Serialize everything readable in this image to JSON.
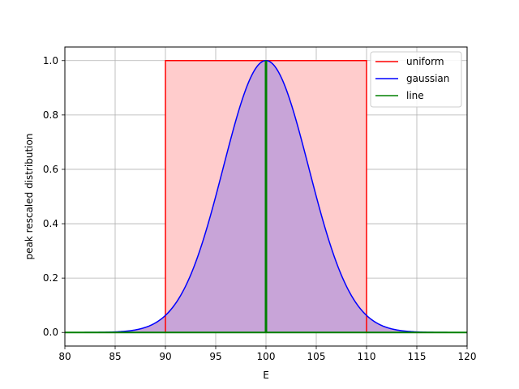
{
  "chart_data": {
    "type": "area",
    "title": "",
    "xlabel": "E",
    "ylabel": "peak rescaled distribution",
    "xlim": [
      80,
      120
    ],
    "ylim": [
      -0.05,
      1.05
    ],
    "xticks": [
      80,
      85,
      90,
      95,
      100,
      105,
      110,
      115,
      120
    ],
    "yticks": [
      0.0,
      0.2,
      0.4,
      0.6,
      0.8,
      1.0
    ],
    "xtick_labels": [
      "80",
      "85",
      "90",
      "95",
      "100",
      "105",
      "110",
      "115",
      "120"
    ],
    "ytick_labels": [
      "0.0",
      "0.2",
      "0.4",
      "0.6",
      "0.8",
      "1.0"
    ],
    "grid": true,
    "legend_position": "top-right",
    "series": [
      {
        "name": "uniform",
        "color": "#ff0000",
        "fill": "#ffcccc",
        "points": [
          [
            80,
            0
          ],
          [
            90,
            0
          ],
          [
            90,
            1
          ],
          [
            110,
            1
          ],
          [
            110,
            0
          ],
          [
            120,
            0
          ]
        ]
      },
      {
        "name": "gaussian",
        "color": "#0000ff",
        "fill": "#c8a4d8",
        "distribution": "normal",
        "center": 100,
        "sigma": 4.25,
        "peak": 1.0
      },
      {
        "name": "line",
        "color": "#008000",
        "points": [
          [
            80,
            0
          ],
          [
            100,
            0
          ],
          [
            100,
            1
          ],
          [
            100,
            0
          ],
          [
            120,
            0
          ]
        ]
      }
    ]
  }
}
